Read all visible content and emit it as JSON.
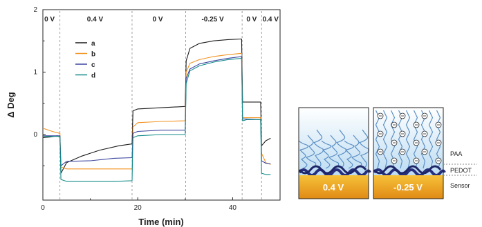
{
  "chart_data": {
    "type": "line",
    "xlabel": "Time (min)",
    "ylabel": "Δ Deg",
    "xlim": [
      0,
      50
    ],
    "ylim": [
      -1.05,
      2
    ],
    "x_ticks": [
      "0",
      "20",
      "40"
    ],
    "y_ticks": [
      "0",
      "1",
      "2"
    ],
    "x_tick_values": [
      0,
      20,
      40
    ],
    "y_tick_values": [
      0,
      1,
      2
    ],
    "potential_steps": {
      "boundaries_min": [
        3.6,
        18.8,
        30.1,
        42.0,
        46.1
      ],
      "labels": [
        "0 V",
        "0.4 V",
        "0 V",
        "-0.25 V",
        "0 V",
        "0.4 V"
      ],
      "label_times_min": [
        1.4,
        11.0,
        24.2,
        35.8,
        44.0,
        48.0
      ]
    },
    "series": [
      {
        "name": "a",
        "color": "#1a1a1a",
        "x": [
          0,
          1.5,
          3.0,
          3.6,
          3.8,
          5,
          8,
          12,
          16,
          18.8,
          19.0,
          20,
          25,
          30.0,
          30.2,
          31,
          33,
          36,
          39,
          41.9,
          42.1,
          43,
          45.9,
          46.1,
          47,
          48
        ],
        "y": [
          -0.05,
          -0.04,
          -0.02,
          -0.04,
          -0.62,
          -0.45,
          -0.35,
          -0.25,
          -0.18,
          -0.15,
          0.38,
          0.41,
          0.43,
          0.45,
          1.18,
          1.38,
          1.46,
          1.5,
          1.52,
          1.53,
          0.52,
          0.52,
          0.52,
          -0.18,
          -0.1,
          -0.06
        ]
      },
      {
        "name": "b",
        "color": "#f39422",
        "x": [
          0,
          2,
          3.5,
          3.6,
          3.8,
          5,
          10,
          15,
          18.8,
          19.0,
          20,
          25,
          30.0,
          30.2,
          31,
          33,
          36,
          39,
          41.9,
          42.1,
          43,
          45.9,
          46.1,
          47,
          48
        ],
        "y": [
          0.1,
          0.05,
          0.02,
          0.02,
          -0.52,
          -0.55,
          -0.55,
          -0.55,
          -0.55,
          0.12,
          0.19,
          0.21,
          0.22,
          1.0,
          1.14,
          1.2,
          1.25,
          1.28,
          1.3,
          0.27,
          0.27,
          0.27,
          -0.3,
          -0.45,
          -0.48
        ]
      },
      {
        "name": "c",
        "color": "#3b45a0",
        "x": [
          0,
          3.6,
          3.8,
          5,
          10,
          15,
          18.8,
          19.0,
          20,
          25,
          30.0,
          30.2,
          31,
          33,
          36,
          39,
          41.9,
          42.1,
          43,
          45.9,
          46.1,
          47,
          48
        ],
        "y": [
          -0.02,
          -0.02,
          -0.5,
          -0.43,
          -0.42,
          -0.38,
          -0.37,
          0.02,
          0.05,
          0.07,
          0.07,
          0.9,
          1.05,
          1.13,
          1.18,
          1.22,
          1.25,
          0.25,
          0.25,
          0.24,
          -0.42,
          -0.46,
          -0.47
        ]
      },
      {
        "name": "d",
        "color": "#138c8a",
        "x": [
          0,
          3.6,
          3.8,
          5,
          10,
          15,
          18.8,
          19.0,
          20,
          25,
          30.0,
          30.2,
          31,
          33,
          36,
          39,
          41.9,
          42.1,
          43,
          45.9,
          46.1,
          47,
          48
        ],
        "y": [
          -0.03,
          -0.03,
          -0.72,
          -0.75,
          -0.75,
          -0.75,
          -0.74,
          -0.05,
          -0.02,
          0.0,
          0.0,
          0.82,
          1.02,
          1.1,
          1.16,
          1.2,
          1.22,
          0.22,
          0.24,
          0.24,
          -0.62,
          -0.64,
          -0.64
        ]
      }
    ],
    "legend": {
      "placement": "top-left",
      "entries": [
        "a",
        "b",
        "c",
        "d"
      ]
    }
  },
  "schematic": {
    "left_panel_voltage": "0.4 V",
    "right_panel_voltage": "-0.25 V",
    "layer_labels": [
      "PAA",
      "PEDOT",
      "Sensor"
    ],
    "ion_symbol": "⊖"
  }
}
